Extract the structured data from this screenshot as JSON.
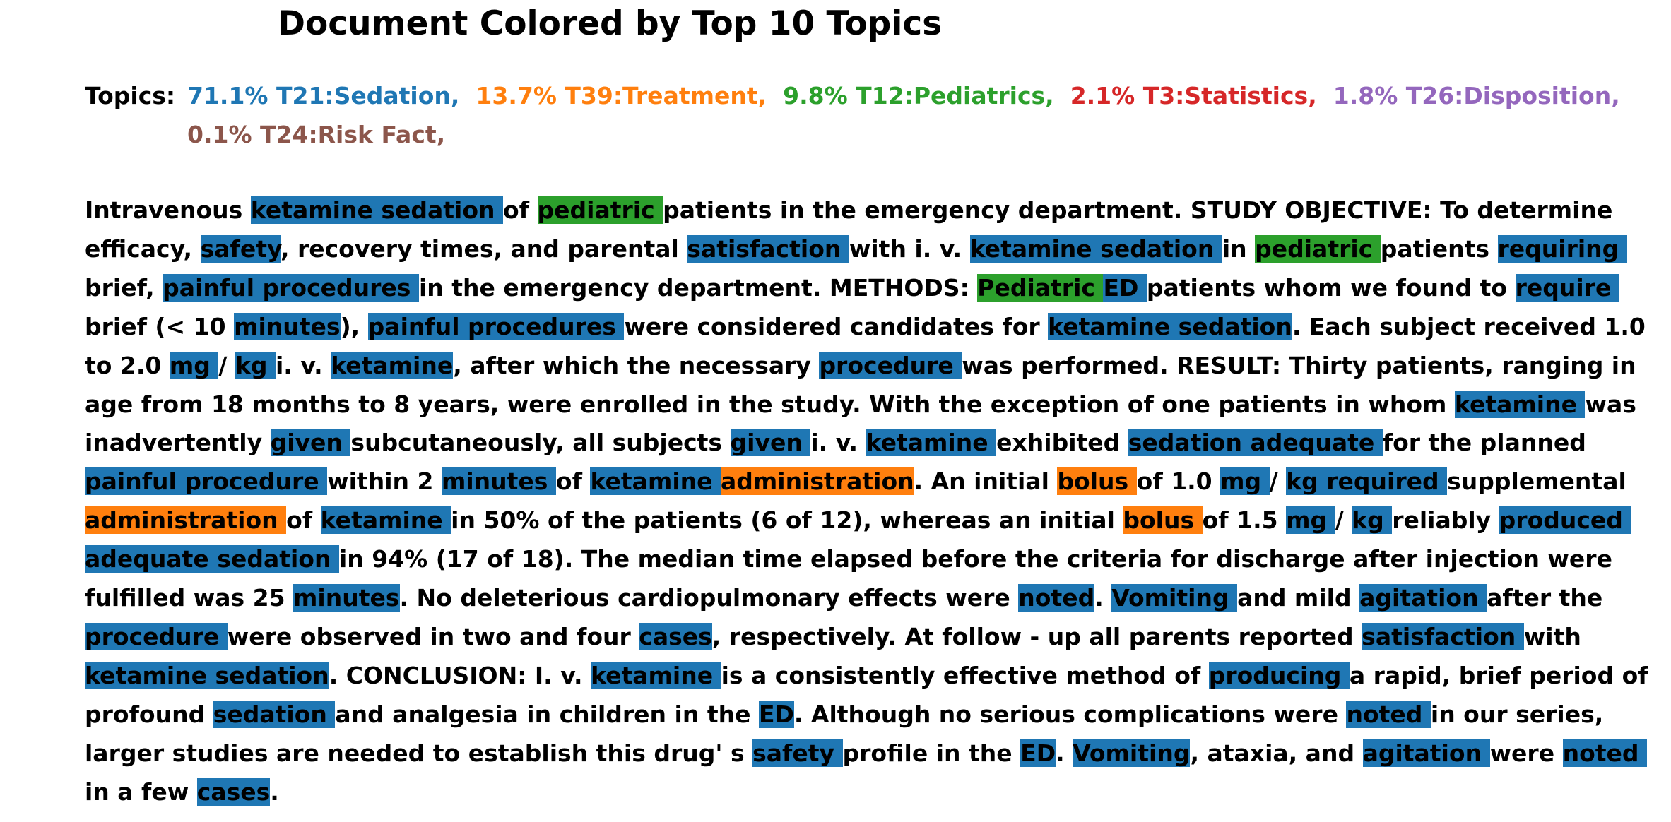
{
  "title": "Document Colored by Top 10 Topics",
  "topics_label": "Topics:",
  "topics": [
    {
      "pct": "71.1%",
      "name": "T21:Sedation",
      "color": "#1f77b4"
    },
    {
      "pct": "13.7%",
      "name": "T39:Treatment",
      "color": "#ff7f0e"
    },
    {
      "pct": "9.8%",
      "name": "T12:Pediatrics",
      "color": "#2ca02c"
    },
    {
      "pct": "2.1%",
      "name": "T3:Statistics",
      "color": "#d62728"
    },
    {
      "pct": "1.8%",
      "name": "T26:Disposition",
      "color": "#9467bd"
    },
    {
      "pct": "0.1%",
      "name": "T24:Risk Fact",
      "color": "#8c564b"
    }
  ],
  "document": [
    {
      "t": "Intravenous "
    },
    {
      "t": "ketamine sedation ",
      "c": 0
    },
    {
      "t": "of "
    },
    {
      "t": "pediatric ",
      "c": 2
    },
    {
      "t": "patients in the emergency department. STUDY OBJECTIVE: To determine efficacy, "
    },
    {
      "t": "safety",
      "c": 0
    },
    {
      "t": ", recovery times, and parental "
    },
    {
      "t": "satisfaction ",
      "c": 0
    },
    {
      "t": "with i. v. "
    },
    {
      "t": "ketamine sedation ",
      "c": 0
    },
    {
      "t": "in "
    },
    {
      "t": "pediatric ",
      "c": 2
    },
    {
      "t": "patients "
    },
    {
      "t": "requiring ",
      "c": 0
    },
    {
      "t": "brief, "
    },
    {
      "t": "painful procedures ",
      "c": 0
    },
    {
      "t": "in the emergency department. METHODS: "
    },
    {
      "t": "Pediatric ",
      "c": 2
    },
    {
      "t": "ED ",
      "c": 0
    },
    {
      "t": "patients whom we found to "
    },
    {
      "t": "require ",
      "c": 0
    },
    {
      "t": "brief (< 10 "
    },
    {
      "t": "minutes",
      "c": 0
    },
    {
      "t": "), "
    },
    {
      "t": "painful procedures ",
      "c": 0
    },
    {
      "t": "were considered candidates for "
    },
    {
      "t": "ketamine sedation",
      "c": 0
    },
    {
      "t": ". Each subject received 1.0 to 2.0 "
    },
    {
      "t": "mg ",
      "c": 0
    },
    {
      "t": "/ "
    },
    {
      "t": "kg ",
      "c": 0
    },
    {
      "t": "i. v. "
    },
    {
      "t": "ketamine",
      "c": 0
    },
    {
      "t": ", after which the necessary "
    },
    {
      "t": "procedure ",
      "c": 0
    },
    {
      "t": "was performed. RESULT: Thirty patients, ranging in age from 18 months to 8 years, were enrolled in the study. With the exception of one patients in whom "
    },
    {
      "t": "ketamine ",
      "c": 0
    },
    {
      "t": "was inadvertently "
    },
    {
      "t": "given ",
      "c": 0
    },
    {
      "t": "subcutaneously, all subjects "
    },
    {
      "t": "given ",
      "c": 0
    },
    {
      "t": "i. v. "
    },
    {
      "t": "ketamine ",
      "c": 0
    },
    {
      "t": "exhibited "
    },
    {
      "t": "sedation adequate ",
      "c": 0
    },
    {
      "t": "for the planned "
    },
    {
      "t": "painful procedure ",
      "c": 0
    },
    {
      "t": "within 2 "
    },
    {
      "t": "minutes ",
      "c": 0
    },
    {
      "t": "of "
    },
    {
      "t": "ketamine ",
      "c": 0
    },
    {
      "t": "administration",
      "c": 1
    },
    {
      "t": ". An initial "
    },
    {
      "t": "bolus ",
      "c": 1
    },
    {
      "t": "of 1.0 "
    },
    {
      "t": "mg ",
      "c": 0
    },
    {
      "t": "/ "
    },
    {
      "t": "kg required ",
      "c": 0
    },
    {
      "t": "supplemental "
    },
    {
      "t": "administration ",
      "c": 1
    },
    {
      "t": "of "
    },
    {
      "t": "ketamine ",
      "c": 0
    },
    {
      "t": "in 50% of the patients (6 of 12), whereas an initial "
    },
    {
      "t": "bolus ",
      "c": 1
    },
    {
      "t": "of 1.5 "
    },
    {
      "t": "mg ",
      "c": 0
    },
    {
      "t": "/ "
    },
    {
      "t": "kg ",
      "c": 0
    },
    {
      "t": "reliably "
    },
    {
      "t": "produced adequate sedation ",
      "c": 0
    },
    {
      "t": "in 94% (17 of 18). The median time elapsed before the criteria for discharge after injection were fulfilled was 25 "
    },
    {
      "t": "minutes",
      "c": 0
    },
    {
      "t": ". No deleterious cardiopulmonary effects were "
    },
    {
      "t": "noted",
      "c": 0
    },
    {
      "t": ". "
    },
    {
      "t": "Vomiting ",
      "c": 0
    },
    {
      "t": "and mild "
    },
    {
      "t": "agitation ",
      "c": 0
    },
    {
      "t": "after the "
    },
    {
      "t": "procedure ",
      "c": 0
    },
    {
      "t": "were observed in two and four "
    },
    {
      "t": "cases",
      "c": 0
    },
    {
      "t": ", respectively. At follow - up all parents reported "
    },
    {
      "t": "satisfaction ",
      "c": 0
    },
    {
      "t": "with "
    },
    {
      "t": "ketamine sedation",
      "c": 0
    },
    {
      "t": ". CONCLUSION: I. v. "
    },
    {
      "t": "ketamine ",
      "c": 0
    },
    {
      "t": "is a consistently effective method of "
    },
    {
      "t": "producing ",
      "c": 0
    },
    {
      "t": "a rapid, brief period of profound "
    },
    {
      "t": "sedation ",
      "c": 0
    },
    {
      "t": "and analgesia in children in the "
    },
    {
      "t": "ED",
      "c": 0
    },
    {
      "t": ". Although no serious complications were "
    },
    {
      "t": "noted ",
      "c": 0
    },
    {
      "t": "in our series, larger studies are needed to establish this drug' s "
    },
    {
      "t": "safety ",
      "c": 0
    },
    {
      "t": "profile in the "
    },
    {
      "t": "ED",
      "c": 0
    },
    {
      "t": ". "
    },
    {
      "t": "Vomiting",
      "c": 0
    },
    {
      "t": ", ataxia, and "
    },
    {
      "t": "agitation ",
      "c": 0
    },
    {
      "t": "were "
    },
    {
      "t": "noted ",
      "c": 0
    },
    {
      "t": "in a few "
    },
    {
      "t": "cases",
      "c": 0
    },
    {
      "t": "."
    }
  ]
}
